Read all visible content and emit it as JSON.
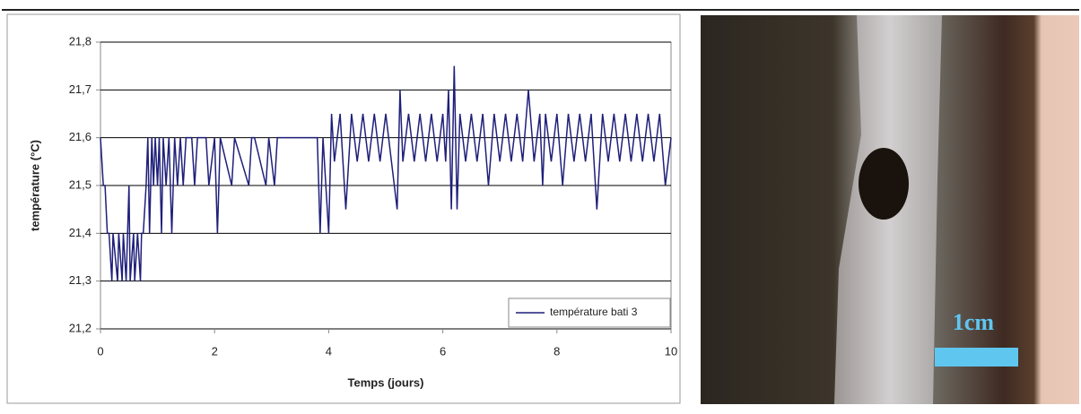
{
  "chart_data": {
    "type": "line",
    "y_label": "température (°C)",
    "x_label": "Temps (jours)",
    "xlim": [
      0,
      10
    ],
    "xticks": [
      0,
      2,
      4,
      6,
      8,
      10
    ],
    "ylim": [
      21.2,
      21.8
    ],
    "yticks": [
      {
        "value": 21.2,
        "label": "21,2"
      },
      {
        "value": 21.3,
        "label": "21,3"
      },
      {
        "value": 21.4,
        "label": "21,4"
      },
      {
        "value": 21.5,
        "label": "21,5"
      },
      {
        "value": 21.6,
        "label": "21,6"
      },
      {
        "value": 21.7,
        "label": "21,7"
      },
      {
        "value": 21.8,
        "label": "21,8"
      }
    ],
    "grid": true,
    "legend": "lower right",
    "x": [
      0,
      0.05,
      0.08,
      0.12,
      0.15,
      0.2,
      0.22,
      0.3,
      0.32,
      0.38,
      0.4,
      0.45,
      0.5,
      0.52,
      0.58,
      0.6,
      0.65,
      0.7,
      0.72,
      0.75,
      0.8,
      0.83,
      0.86,
      0.9,
      0.93,
      0.96,
      1.0,
      1.03,
      1.07,
      1.1,
      1.15,
      1.2,
      1.25,
      1.3,
      1.35,
      1.4,
      1.45,
      1.5,
      1.6,
      1.65,
      1.7,
      1.85,
      1.9,
      2.0,
      2.05,
      2.1,
      2.3,
      2.35,
      2.6,
      2.65,
      2.7,
      2.9,
      2.95,
      3.05,
      3.1,
      3.8,
      3.85,
      3.9,
      4.0,
      4.05,
      4.1,
      4.2,
      4.3,
      4.4,
      4.5,
      4.6,
      4.7,
      4.8,
      4.9,
      5.0,
      5.1,
      5.2,
      5.25,
      5.3,
      5.4,
      5.5,
      5.6,
      5.7,
      5.8,
      5.9,
      6.0,
      6.05,
      6.1,
      6.15,
      6.2,
      6.25,
      6.3,
      6.4,
      6.5,
      6.6,
      6.7,
      6.8,
      6.9,
      7.0,
      7.1,
      7.2,
      7.3,
      7.4,
      7.5,
      7.6,
      7.7,
      7.75,
      7.8,
      7.9,
      8.0,
      8.1,
      8.2,
      8.3,
      8.4,
      8.5,
      8.6,
      8.7,
      8.8,
      8.9,
      9.0,
      9.1,
      9.2,
      9.3,
      9.4,
      9.5,
      9.6,
      9.7,
      9.8,
      9.9,
      10.0
    ],
    "series": [
      {
        "name": "température bati 3",
        "color": "#1f1f7a",
        "values": [
          21.6,
          21.5,
          21.5,
          21.4,
          21.4,
          21.3,
          21.4,
          21.3,
          21.4,
          21.3,
          21.4,
          21.3,
          21.5,
          21.3,
          21.4,
          21.3,
          21.4,
          21.3,
          21.4,
          21.4,
          21.5,
          21.6,
          21.4,
          21.6,
          21.5,
          21.6,
          21.5,
          21.6,
          21.4,
          21.6,
          21.5,
          21.6,
          21.4,
          21.6,
          21.5,
          21.6,
          21.5,
          21.6,
          21.6,
          21.5,
          21.6,
          21.6,
          21.5,
          21.6,
          21.4,
          21.6,
          21.5,
          21.6,
          21.5,
          21.6,
          21.6,
          21.5,
          21.6,
          21.5,
          21.6,
          21.6,
          21.4,
          21.6,
          21.4,
          21.65,
          21.55,
          21.65,
          21.45,
          21.65,
          21.55,
          21.65,
          21.55,
          21.65,
          21.55,
          21.65,
          21.55,
          21.45,
          21.7,
          21.55,
          21.65,
          21.55,
          21.65,
          21.55,
          21.65,
          21.55,
          21.65,
          21.55,
          21.7,
          21.45,
          21.75,
          21.45,
          21.65,
          21.55,
          21.65,
          21.55,
          21.65,
          21.5,
          21.65,
          21.55,
          21.65,
          21.55,
          21.65,
          21.55,
          21.7,
          21.55,
          21.65,
          21.5,
          21.65,
          21.55,
          21.65,
          21.5,
          21.65,
          21.55,
          21.65,
          21.55,
          21.65,
          21.45,
          21.65,
          21.55,
          21.65,
          21.55,
          21.65,
          21.55,
          21.65,
          21.55,
          21.65,
          21.55,
          21.65,
          21.5,
          21.6
        ]
      }
    ]
  },
  "photo": {
    "scale_label": "1cm"
  }
}
